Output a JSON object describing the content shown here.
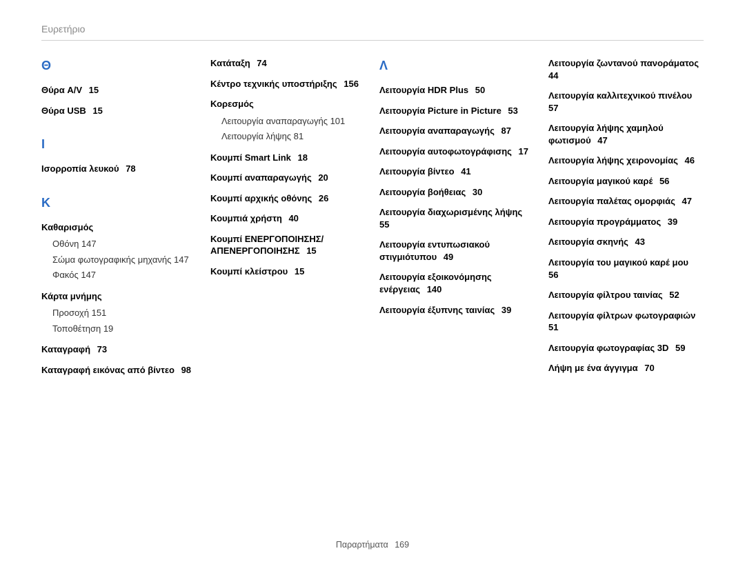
{
  "header": {
    "title": "Ευρετήριο"
  },
  "footer": {
    "section": "Παραρτήματα",
    "page": "169"
  },
  "style": {
    "accent_color": "#2a6bc4",
    "body_text_color": "#000000",
    "header_text_color": "#888888",
    "rule_color": "#cfcfcf",
    "background_color": "#ffffff",
    "font_family": "Arial",
    "heading_fontsize": 18,
    "entry_fontsize": 13,
    "header_fontsize": 14,
    "footer_fontsize": 12
  },
  "columns": [
    {
      "groups": [
        {
          "letter": "Θ",
          "entries": [
            {
              "label": "Θύρα A/V",
              "page": "15"
            },
            {
              "label": "Θύρα USB",
              "page": "15"
            }
          ]
        },
        {
          "letter": "Ι",
          "entries": [
            {
              "label": "Ισορροπία λευκού",
              "page": "78"
            }
          ]
        },
        {
          "letter": "Κ",
          "entries": [
            {
              "label": "Καθαρισμός",
              "sub": [
                {
                  "label": "Οθόνη",
                  "page": "147"
                },
                {
                  "label": "Σώμα φωτογραφικής μηχανής",
                  "page": "147"
                },
                {
                  "label": "Φακός",
                  "page": "147"
                }
              ]
            },
            {
              "label": "Κάρτα μνήμης",
              "sub": [
                {
                  "label": "Προσοχή",
                  "page": "151"
                },
                {
                  "label": "Τοποθέτηση",
                  "page": "19"
                }
              ]
            },
            {
              "label": "Καταγραφή",
              "page": "73"
            },
            {
              "label": "Καταγραφή εικόνας από βίντεο",
              "page": "98"
            }
          ]
        }
      ]
    },
    {
      "groups": [
        {
          "letter": "",
          "entries": [
            {
              "label": "Κατάταξη",
              "page": "74"
            },
            {
              "label": "Κέντρο τεχνικής υποστήριξης",
              "page": "156"
            },
            {
              "label": "Κορεσμός",
              "sub": [
                {
                  "label": "Λειτουργία αναπαραγωγής",
                  "page": "101"
                },
                {
                  "label": "Λειτουργία λήψης",
                  "page": "81"
                }
              ]
            },
            {
              "label": "Κουμπί Smart Link",
              "page": "18"
            },
            {
              "label": "Κουμπί αναπαραγωγής",
              "page": "20"
            },
            {
              "label": "Κουμπί αρχικής οθόνης",
              "page": "26"
            },
            {
              "label": "Κουμπιά χρήστη",
              "page": "40"
            },
            {
              "label": "Κουμπί ΕΝΕΡΓΟΠΟΙΗΣΗΣ/ ΑΠΕΝΕΡΓΟΠΟΙΗΣΗΣ",
              "page": "15"
            },
            {
              "label": "Κουμπί κλείστρου",
              "page": "15"
            }
          ]
        }
      ]
    },
    {
      "groups": [
        {
          "letter": "Λ",
          "entries": [
            {
              "label": "Λειτουργία HDR Plus",
              "page": "50"
            },
            {
              "label": "Λειτουργία Picture in Picture",
              "page": "53"
            },
            {
              "label": "Λειτουργία αναπαραγωγής",
              "page": "87"
            },
            {
              "label": "Λειτουργία αυτοφωτογράφισης",
              "page": "17"
            },
            {
              "label": "Λειτουργία βίντεο",
              "page": "41"
            },
            {
              "label": "Λειτουργία βοήθειας",
              "page": "30"
            },
            {
              "label": "Λειτουργία διαχωρισμένης λήψης",
              "page": "55"
            },
            {
              "label": "Λειτουργία εντυπωσιακού στιγμιότυπου",
              "page": "49"
            },
            {
              "label": "Λειτουργία εξοικονόμησης ενέργειας",
              "page": "140"
            },
            {
              "label": "Λειτουργία έξυπνης ταινίας",
              "page": "39"
            }
          ]
        }
      ]
    },
    {
      "groups": [
        {
          "letter": "",
          "entries": [
            {
              "label": "Λειτουργία ζωντανού πανοράματος",
              "page": "44"
            },
            {
              "label": "Λειτουργία καλλιτεχνικού πινέλου",
              "page": "57"
            },
            {
              "label": "Λειτουργία λήψης χαμηλού φωτισμού",
              "page": "47"
            },
            {
              "label": "Λειτουργία λήψης χειρονομίας",
              "page": "46"
            },
            {
              "label": "Λειτουργία μαγικού καρέ",
              "page": "56"
            },
            {
              "label": "Λειτουργία παλέτας ομορφιάς",
              "page": "47"
            },
            {
              "label": "Λειτουργία προγράμματος",
              "page": "39"
            },
            {
              "label": "Λειτουργία σκηνής",
              "page": "43"
            },
            {
              "label": "Λειτουργία του μαγικού καρέ μου",
              "page": "56"
            },
            {
              "label": "Λειτουργία φίλτρου ταινίας",
              "page": "52"
            },
            {
              "label": "Λειτουργία φίλτρων φωτογραφιών",
              "page": "51"
            },
            {
              "label": "Λειτουργία φωτογραφίας 3D",
              "page": "59"
            },
            {
              "label": "Λήψη με ένα άγγιγμα",
              "page": "70"
            }
          ]
        }
      ]
    }
  ]
}
